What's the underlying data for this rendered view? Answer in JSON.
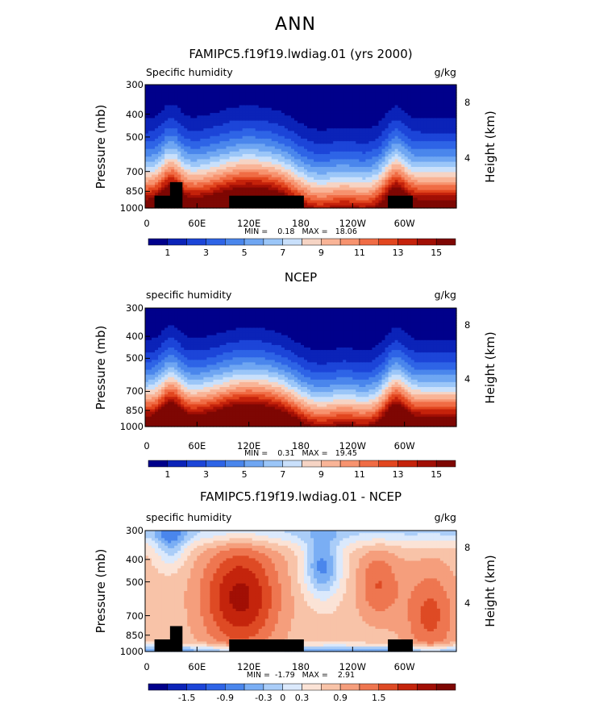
{
  "page_title": "ANN",
  "chart_data": [
    {
      "type": "heatmap",
      "title": "FAMIPC5.f19f19.lwdiag.01 (yrs 2000)",
      "variable": "Specific humidity",
      "units": "g/kg",
      "ylabel": "Pressure (mb)",
      "ylabel_right": "Height (km)",
      "y_ticks": [
        "300",
        "400",
        "500",
        "700",
        "850",
        "1000"
      ],
      "height_ticks": [
        "8",
        "4"
      ],
      "x_ticks": [
        "0",
        "60E",
        "120E",
        "180",
        "120W",
        "60W"
      ],
      "min_max": "MIN =    0.18   MAX =   18.06",
      "colorbar_labels": [
        "1",
        "3",
        "5",
        "7",
        "9",
        "11",
        "13",
        "15"
      ],
      "colors": [
        "#00008b",
        "#0b23b8",
        "#1c45d8",
        "#2e64e6",
        "#4a86ec",
        "#6fa6f2",
        "#9bc6f8",
        "#c9e0fb",
        "#f6d4c4",
        "#f9b497",
        "#f7936f",
        "#f06c45",
        "#e2461f",
        "#c5220b",
        "#a10f05",
        "#7e0703"
      ],
      "levels": [
        0,
        2,
        4,
        6,
        8,
        10,
        12,
        14,
        16
      ],
      "profile_description": "zonal mean of specific humidity by longitude, decreasing with height",
      "max": 18.06,
      "min": 0.18,
      "masked": true
    },
    {
      "type": "heatmap",
      "title": "NCEP",
      "variable": "specific humidity",
      "units": "g/kg",
      "ylabel": "Pressure (mb)",
      "ylabel_right": "Height (km)",
      "y_ticks": [
        "300",
        "400",
        "500",
        "700",
        "850",
        "1000"
      ],
      "height_ticks": [
        "8",
        "4"
      ],
      "x_ticks": [
        "0",
        "60E",
        "120E",
        "180",
        "120W",
        "60W"
      ],
      "min_max": "MIN =    0.31   MAX =   19.45",
      "colorbar_labels": [
        "1",
        "3",
        "5",
        "7",
        "9",
        "11",
        "13",
        "15"
      ],
      "colors": [
        "#00008b",
        "#0b23b8",
        "#1c45d8",
        "#2e64e6",
        "#4a86ec",
        "#6fa6f2",
        "#9bc6f8",
        "#c9e0fb",
        "#f6d4c4",
        "#f9b497",
        "#f7936f",
        "#f06c45",
        "#e2461f",
        "#c5220b",
        "#a10f05",
        "#7e0703"
      ],
      "max": 19.45,
      "min": 0.31,
      "masked": false
    },
    {
      "type": "heatmap",
      "title": "FAMIPC5.f19f19.lwdiag.01 - NCEP",
      "variable": "specific humidity",
      "units": "g/kg",
      "ylabel": "Pressure (mb)",
      "ylabel_right": "Height (km)",
      "y_ticks": [
        "300",
        "400",
        "500",
        "700",
        "850",
        "1000"
      ],
      "height_ticks": [
        "8",
        "4"
      ],
      "x_ticks": [
        "0",
        "60E",
        "120E",
        "180",
        "120W",
        "60W"
      ],
      "min_max": "MIN =  -1.79   MAX =    2.91",
      "colorbar_labels": [
        "-1.5",
        "-0.9",
        "-0.3",
        "0",
        "0.3",
        "0.9",
        "1.5"
      ],
      "colors": [
        "#00008b",
        "#0b23b8",
        "#1c45d8",
        "#2e64e6",
        "#4a86ec",
        "#7aaef4",
        "#aacdf8",
        "#dbe9fc",
        "#fbe3d6",
        "#f8c3a8",
        "#f59e7c",
        "#ee7650",
        "#de4a24",
        "#c4240c",
        "#a10f05",
        "#7e0703"
      ],
      "max": 2.91,
      "min": -1.79,
      "masked": true
    }
  ]
}
